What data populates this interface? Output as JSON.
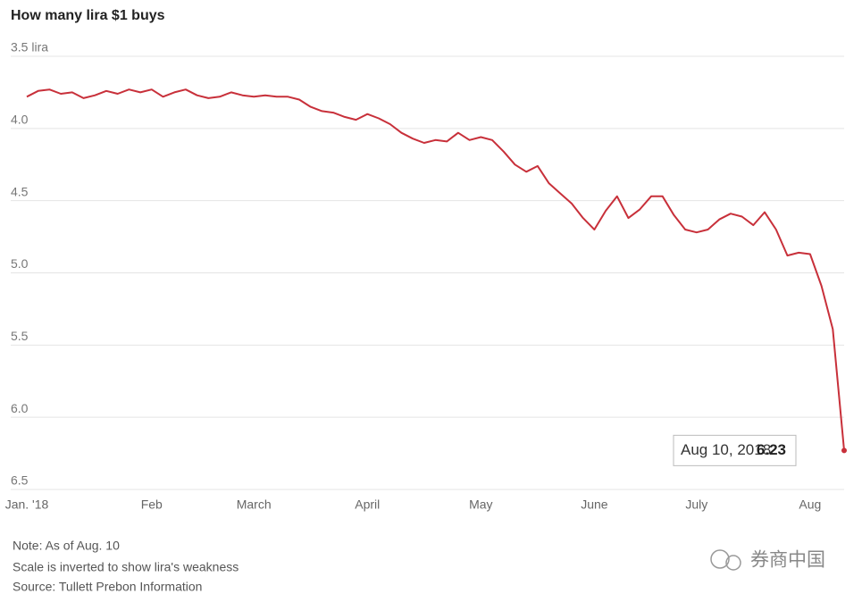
{
  "chart_data": {
    "type": "line",
    "title": "How many lira $1 buys",
    "categories": [
      "Jan. '18",
      null,
      null,
      null,
      null,
      null,
      null,
      null,
      null,
      null,
      null,
      "Feb",
      null,
      null,
      null,
      null,
      null,
      null,
      null,
      null,
      "March",
      null,
      null,
      null,
      null,
      null,
      null,
      null,
      null,
      null,
      "April",
      null,
      null,
      null,
      null,
      null,
      null,
      null,
      null,
      null,
      "May",
      null,
      null,
      null,
      null,
      null,
      null,
      null,
      null,
      null,
      "June",
      null,
      null,
      null,
      null,
      null,
      null,
      null,
      null,
      "July",
      null,
      null,
      null,
      null,
      null,
      null,
      null,
      null,
      null,
      "Aug",
      null,
      null,
      null
    ],
    "values": [
      3.78,
      3.74,
      3.73,
      3.76,
      3.75,
      3.79,
      3.77,
      3.74,
      3.76,
      3.73,
      3.75,
      3.73,
      3.78,
      3.75,
      3.73,
      3.77,
      3.79,
      3.78,
      3.75,
      3.77,
      3.78,
      3.77,
      3.78,
      3.78,
      3.8,
      3.85,
      3.88,
      3.89,
      3.92,
      3.94,
      3.9,
      3.93,
      3.97,
      4.03,
      4.07,
      4.1,
      4.08,
      4.09,
      4.03,
      4.08,
      4.06,
      4.08,
      4.16,
      4.25,
      4.3,
      4.26,
      4.38,
      4.45,
      4.52,
      4.62,
      4.7,
      4.57,
      4.47,
      4.62,
      4.56,
      4.47,
      4.47,
      4.6,
      4.7,
      4.72,
      4.7,
      4.63,
      4.59,
      4.61,
      4.67,
      4.58,
      4.7,
      4.88,
      4.86,
      4.87,
      5.09,
      5.39,
      6.23
    ],
    "color": "#c8303a",
    "ylim": [
      3.5,
      6.5
    ],
    "y_inverted": true,
    "yticks": [
      {
        "value": 3.5,
        "label": "3.5 lira"
      },
      {
        "value": 4.0,
        "label": "4.0"
      },
      4.5,
      {
        "value": 5.0,
        "label": "5.0"
      },
      5.5,
      {
        "value": 6.0,
        "label": "6.0"
      },
      6.5
    ],
    "grid": true,
    "annotation": "Aug 10, 2018",
    "notes": [
      "Note: As of Aug. 10",
      "Scale is inverted to show lira's weakness",
      "Source: Tullett Prebon Information"
    ],
    "watermark": "券商中国"
  }
}
